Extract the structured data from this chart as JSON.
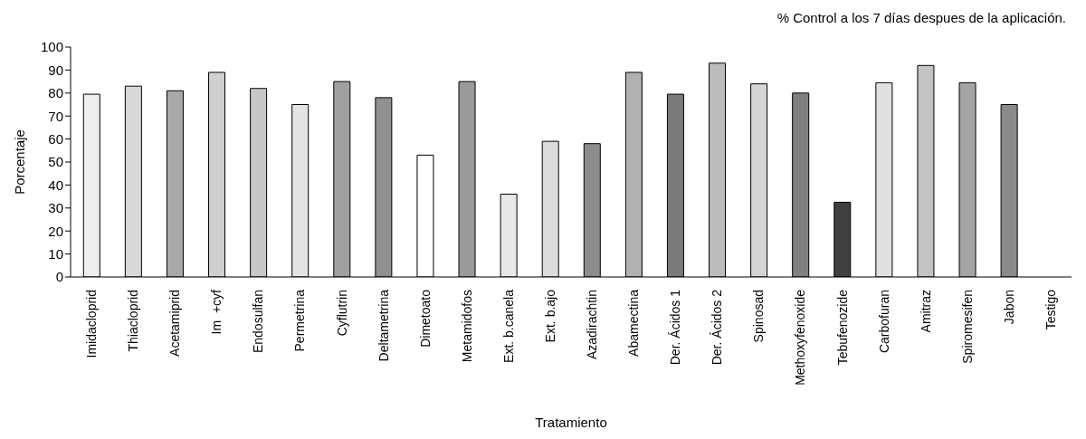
{
  "chart_data": {
    "type": "bar",
    "title": "% Control a los 7 días despues de la aplicación.",
    "xlabel": "Tratamiento",
    "ylabel": "Porcentaje",
    "categories": [
      "Imidacloprid",
      "Thiacloprid",
      "Acetamiprid",
      "Im  +cyf",
      "Endosulfan",
      "Permetrina",
      "Cyflutrin",
      "Deltametrina",
      "Dimetoato",
      "Metamidofos",
      "Ext. b.canela",
      "Ext. b.ajo",
      "Azadirachtin",
      "Abamectina",
      "Der. Ácidos 1",
      "Der. Ácidos 2",
      "Spinosad",
      "Methoxyfenoxide",
      "Tebufenozide",
      "Carbofuran",
      "Amitraz",
      "Spiromesifen",
      "Jabon",
      "Testigo"
    ],
    "values": [
      79.5,
      83,
      81,
      89,
      82,
      75,
      85,
      78,
      53,
      85,
      36,
      59,
      58,
      89,
      79.5,
      93,
      84,
      80,
      32.5,
      84.5,
      92,
      84.5,
      75,
      0
    ],
    "colors": [
      "#eeeeee",
      "#d8d8d8",
      "#a8a8a8",
      "#d0d0d0",
      "#c8c8c8",
      "#e4e4e4",
      "#a0a0a0",
      "#909090",
      "#ffffff",
      "#9a9a9a",
      "#e8e8e8",
      "#dcdcdc",
      "#8c8c8c",
      "#b0b0b0",
      "#7a7a7a",
      "#bcbcbc",
      "#d4d4d4",
      "#808080",
      "#404040",
      "#e0e0e0",
      "#c4c4c4",
      "#a4a4a4",
      "#8a8a8a",
      "#ffffff"
    ],
    "ylim": [
      0,
      100
    ],
    "yticks": [
      0,
      10,
      20,
      30,
      40,
      50,
      60,
      70,
      80,
      90,
      100
    ],
    "grid": false,
    "legend": false
  }
}
